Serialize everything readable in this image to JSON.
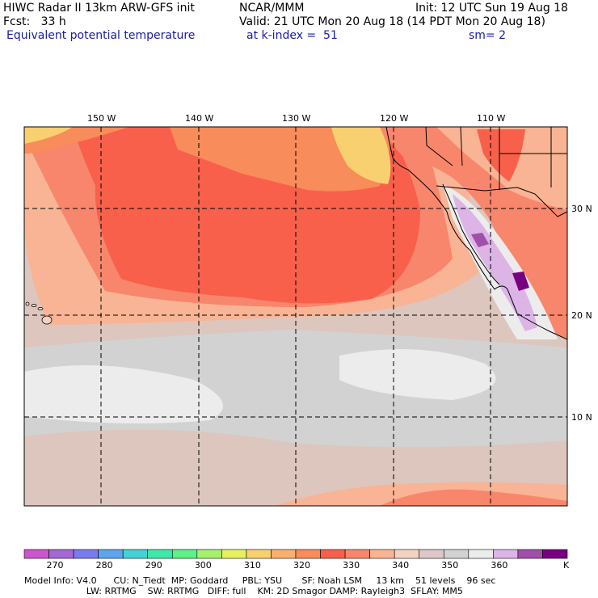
{
  "header": {
    "line1_left": "HIWC Radar II 13km ARW-GFS init",
    "line1_mid": "NCAR/MMM",
    "line1_right": "Init: 12 UTC Sun 19 Aug 18",
    "line2_left": "Fcst:   33 h",
    "line2_right": "Valid: 21 UTC Mon 20 Aug 18 (14 PDT Mon 20 Aug 18)",
    "field": "Equivalent potential temperature",
    "level": "at k-index =  51",
    "smooth": "sm= 2"
  },
  "map": {
    "lon_labels": [
      "150 W",
      "140 W",
      "130 W",
      "120 W",
      "110 W"
    ],
    "lat_labels": [
      "30 N",
      "20 N",
      "10 N"
    ],
    "ocean_base_color": "#d2d2d2"
  },
  "legend": {
    "colors": [
      "#cc55cc",
      "#a468d2",
      "#7b7bf0",
      "#5da6ee",
      "#44d2d2",
      "#3ee8a8",
      "#5ef08a",
      "#a6f070",
      "#e6f060",
      "#f8d070",
      "#f8b070",
      "#f88c5a",
      "#f8604c",
      "#f8866c",
      "#f8b494",
      "#f2d2c2",
      "#dcc8c8",
      "#d2d2d2",
      "#ececec",
      "#dcb4e6",
      "#a050a8",
      "#780080"
    ],
    "ticks": [
      "270",
      "280",
      "290",
      "300",
      "310",
      "320",
      "330",
      "340",
      "350",
      "360"
    ],
    "unit": "K"
  },
  "footer": {
    "line1": "Model Info: V4.0      CU: N_Tiedt  MP: Goddard     PBL: YSU       SF: Noah LSM     13 km    51 levels    96 sec",
    "line2": "                      LW: RRTMG    SW: RRTMG   DIFF: full    KM: 2D Smagor DAMP: Rayleigh3  SFLAY: MM5"
  }
}
